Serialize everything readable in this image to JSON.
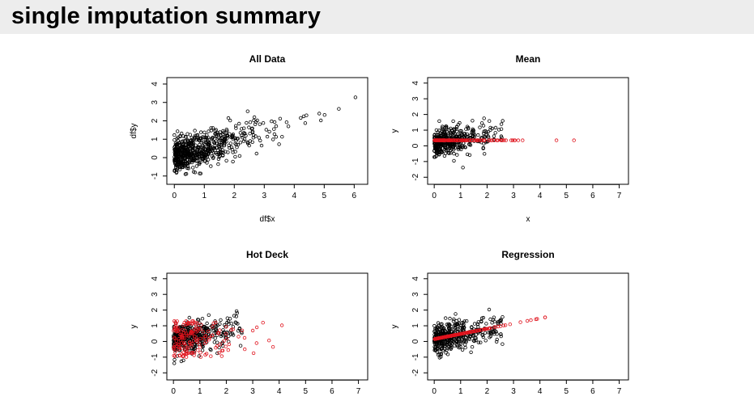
{
  "page": {
    "title": "single imputation summary"
  },
  "colors": {
    "observed": "#000000",
    "imputed": "#e0141e",
    "title_bar_bg": "#ededed"
  },
  "chart_data": [
    {
      "type": "scatter",
      "title": "All Data",
      "xlabel": "df$x",
      "ylabel": "df$y",
      "xlim": [
        0,
        6.3
      ],
      "ylim": [
        -1.3,
        4.3
      ],
      "xticks": [
        0,
        1,
        2,
        3,
        4,
        5,
        6
      ],
      "yticks": [
        -1,
        0,
        1,
        2,
        3,
        4
      ],
      "grid": false,
      "series": [
        {
          "role": "observed",
          "generator": "linear_noise",
          "n": 650,
          "slope": 0.5,
          "intercept": 0.0,
          "noise_sd": 0.45,
          "x_max": 6.1
        }
      ]
    },
    {
      "type": "scatter",
      "title": "Mean",
      "xlabel": "x",
      "ylabel": "y",
      "xlim": [
        0,
        7.2
      ],
      "ylim": [
        -2.3,
        4.3
      ],
      "xticks": [
        0,
        1,
        2,
        3,
        4,
        5,
        6,
        7
      ],
      "yticks": [
        -2,
        -1,
        0,
        1,
        2,
        3,
        4
      ],
      "grid": false,
      "series": [
        {
          "role": "observed",
          "generator": "truncated_cloud",
          "n": 420,
          "x_max": 2.6,
          "slope": 0.3,
          "intercept": 0.1,
          "noise_sd": 0.45
        },
        {
          "role": "imputed",
          "generator": "constant_y",
          "n": 160,
          "y": 0.35,
          "x_max": 6.1
        }
      ]
    },
    {
      "type": "scatter",
      "title": "Hot Deck",
      "xlabel": "",
      "ylabel": "y",
      "xlim": [
        0,
        7.2
      ],
      "ylim": [
        -2.3,
        4.3
      ],
      "xticks": [
        0,
        1,
        2,
        3,
        4,
        5,
        6,
        7
      ],
      "yticks": [
        -2,
        -1,
        0,
        1,
        2,
        3,
        4
      ],
      "grid": false,
      "series": [
        {
          "role": "observed",
          "generator": "truncated_cloud",
          "n": 420,
          "x_max": 2.6,
          "slope": 0.3,
          "intercept": 0.1,
          "noise_sd": 0.45
        },
        {
          "role": "imputed",
          "generator": "random_cloud",
          "n": 170,
          "x_max": 6.1,
          "y_min": -1.0,
          "y_max": 1.3
        }
      ]
    },
    {
      "type": "scatter",
      "title": "Regression",
      "xlabel": "",
      "ylabel": "y",
      "xlim": [
        0,
        7.2
      ],
      "ylim": [
        -2.3,
        4.3
      ],
      "xticks": [
        0,
        1,
        2,
        3,
        4,
        5,
        6,
        7
      ],
      "yticks": [
        -2,
        -1,
        0,
        1,
        2,
        3,
        4
      ],
      "grid": false,
      "series": [
        {
          "role": "observed",
          "generator": "truncated_cloud",
          "n": 420,
          "x_max": 2.6,
          "slope": 0.3,
          "intercept": 0.1,
          "noise_sd": 0.45
        },
        {
          "role": "imputed",
          "generator": "line",
          "n": 170,
          "slope": 0.33,
          "intercept": 0.15,
          "x_max": 6.1
        }
      ]
    }
  ]
}
